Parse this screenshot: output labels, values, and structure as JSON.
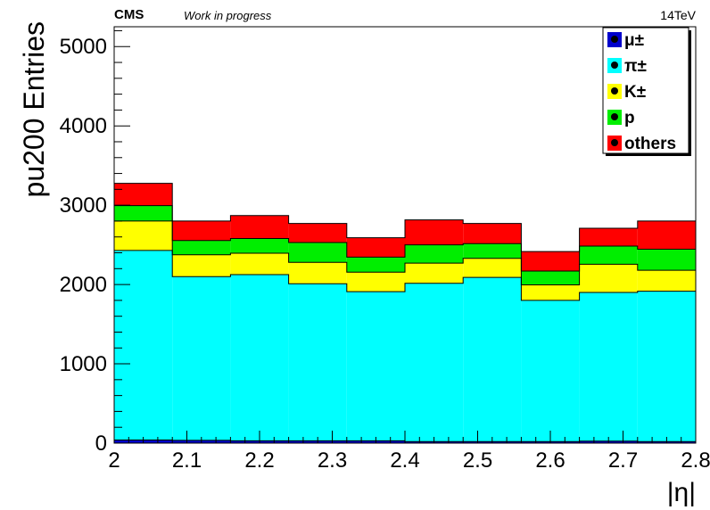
{
  "header": {
    "experiment": "CMS",
    "status": "Work in progress",
    "energy": "14TeV"
  },
  "chart_data": {
    "type": "area",
    "stacked": true,
    "step": true,
    "bin_edges": [
      2.0,
      2.08,
      2.16,
      2.24,
      2.32,
      2.4,
      2.48,
      2.56,
      2.64,
      2.72,
      2.8
    ],
    "xlabel": "|η|",
    "ylabel": "pu200 Entries",
    "xlim": [
      2.0,
      2.8
    ],
    "ylim": [
      0,
      5250
    ],
    "xticks": [
      2,
      2.1,
      2.2,
      2.3,
      2.4,
      2.5,
      2.6,
      2.7,
      2.8
    ],
    "xtick_labels": [
      "2",
      "2.1",
      "2.2",
      "2.3",
      "2.4",
      "2.5",
      "2.6",
      "2.7",
      "2.8"
    ],
    "yticks": [
      0,
      1000,
      2000,
      3000,
      4000,
      5000
    ],
    "ytick_labels": [
      "0",
      "1000",
      "2000",
      "3000",
      "4000",
      "5000"
    ],
    "legend_position": "top-right",
    "series": [
      {
        "name": "μ±",
        "color": "#0000cc",
        "values": [
          40,
          35,
          30,
          30,
          30,
          20,
          20,
          20,
          25,
          20
        ]
      },
      {
        "name": "π±",
        "color": "#00ffff",
        "values": [
          2390,
          2065,
          2095,
          1980,
          1880,
          1995,
          2070,
          1780,
          1875,
          1895
        ]
      },
      {
        "name": "K±",
        "color": "#ffff00",
        "values": [
          370,
          275,
          270,
          270,
          245,
          255,
          240,
          195,
          355,
          265
        ]
      },
      {
        "name": "p",
        "color": "#00ee00",
        "values": [
          195,
          180,
          185,
          250,
          190,
          230,
          185,
          175,
          230,
          265
        ]
      },
      {
        "name": "others",
        "color": "#ff0000",
        "values": [
          280,
          245,
          290,
          240,
          245,
          315,
          255,
          245,
          225,
          355
        ]
      }
    ]
  }
}
